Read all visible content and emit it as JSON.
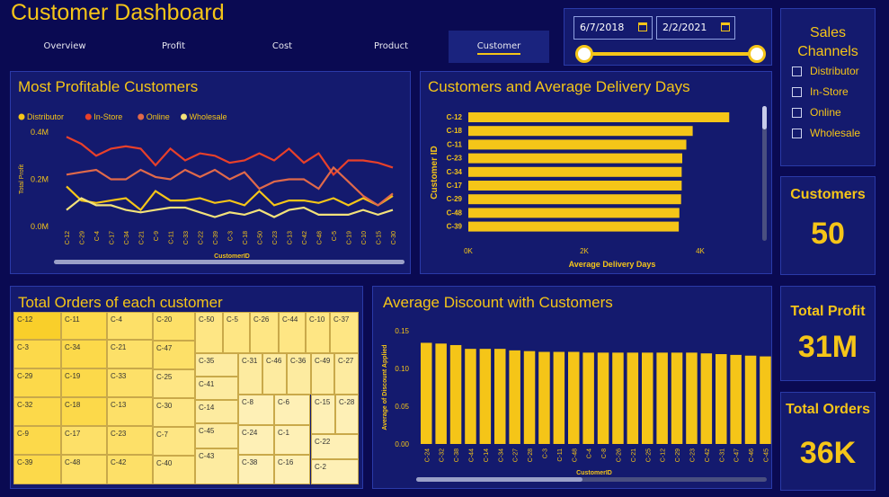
{
  "header": {
    "title": "Customer Dashboard"
  },
  "nav": {
    "tabs": [
      "Overview",
      "Profit",
      "Cost",
      "Product",
      "Customer"
    ],
    "active": "Customer"
  },
  "date_filter": {
    "start": "6/7/2018",
    "end": "2/2/2021"
  },
  "sales_channels": {
    "title_line1": "Sales",
    "title_line2": "Channels",
    "options": [
      "Distributor",
      "In-Store",
      "Online",
      "Wholesale"
    ]
  },
  "kpis": {
    "customers": {
      "label": "Customers",
      "value": "50"
    },
    "total_profit": {
      "label": "Total Profit",
      "value": "31M"
    },
    "total_orders": {
      "label": "Total Orders",
      "value": "36K"
    }
  },
  "colors": {
    "accent": "#f5c518",
    "distributor": "#f5c518",
    "in_store": "#e8402a",
    "online": "#e0694a",
    "wholesale": "#f3e27a"
  },
  "chart_data": [
    {
      "id": "profitable",
      "type": "line",
      "title": "Most Profitable Customers",
      "xlabel": "CustomerID",
      "ylabel": "Total Profit",
      "y_ticks": [
        "0.0M",
        "0.2M",
        "0.4M"
      ],
      "ylim": [
        0,
        0.4
      ],
      "categories": [
        "C-12",
        "C-29",
        "C-4",
        "C-17",
        "C-34",
        "C-21",
        "C-9",
        "C-11",
        "C-33",
        "C-22",
        "C-39",
        "C-3",
        "C-18",
        "C-50",
        "C-23",
        "C-13",
        "C-42",
        "C-48",
        "C-5",
        "C-19",
        "C-10",
        "C-15",
        "C-30"
      ],
      "series": [
        {
          "name": "Distributor",
          "color": "#f5c518",
          "values": [
            0.17,
            0.11,
            0.1,
            0.11,
            0.12,
            0.07,
            0.15,
            0.11,
            0.11,
            0.12,
            0.1,
            0.11,
            0.09,
            0.15,
            0.09,
            0.11,
            0.11,
            0.1,
            0.12,
            0.09,
            0.12,
            0.09,
            0.13
          ]
        },
        {
          "name": "In-Store",
          "color": "#e8402a",
          "values": [
            0.38,
            0.35,
            0.3,
            0.33,
            0.34,
            0.33,
            0.26,
            0.33,
            0.28,
            0.31,
            0.3,
            0.27,
            0.28,
            0.31,
            0.28,
            0.33,
            0.27,
            0.31,
            0.22,
            0.28,
            0.28,
            0.27,
            0.25
          ]
        },
        {
          "name": "Online",
          "color": "#e0694a",
          "values": [
            0.22,
            0.23,
            0.24,
            0.2,
            0.2,
            0.24,
            0.21,
            0.2,
            0.24,
            0.21,
            0.24,
            0.2,
            0.23,
            0.16,
            0.19,
            0.2,
            0.2,
            0.16,
            0.25,
            0.19,
            0.13,
            0.09,
            0.14
          ]
        },
        {
          "name": "Wholesale",
          "color": "#f3e27a",
          "values": [
            0.07,
            0.12,
            0.09,
            0.09,
            0.07,
            0.06,
            0.07,
            0.08,
            0.08,
            0.06,
            0.04,
            0.06,
            0.05,
            0.07,
            0.04,
            0.07,
            0.08,
            0.05,
            0.05,
            0.05,
            0.07,
            0.05,
            0.07
          ]
        }
      ]
    },
    {
      "id": "delivery",
      "type": "bar",
      "orientation": "horizontal",
      "title": "Customers and Average Delivery Days",
      "xlabel": "Average Delivery Days",
      "ylabel": "Customer ID",
      "x_ticks": [
        "0K",
        "2K",
        "4K"
      ],
      "xlim": [
        0,
        5000
      ],
      "categories": [
        "C-12",
        "C-18",
        "C-11",
        "C-23",
        "C-34",
        "C-17",
        "C-29",
        "C-48",
        "C-39"
      ],
      "values": [
        4500,
        3870,
        3760,
        3690,
        3680,
        3680,
        3670,
        3640,
        3630
      ]
    },
    {
      "id": "treemap",
      "type": "treemap",
      "title": "Total Orders of each customer",
      "categories": [
        "C-12",
        "C-3",
        "C-29",
        "C-32",
        "C-9",
        "C-39",
        "C-11",
        "C-34",
        "C-19",
        "C-18",
        "C-17",
        "C-48",
        "C-4",
        "C-21",
        "C-33",
        "C-13",
        "C-23",
        "C-42",
        "C-20",
        "C-47",
        "C-25",
        "C-30",
        "C-7",
        "C-40",
        "C-50",
        "C-5",
        "C-26",
        "C-44",
        "C-10",
        "C-37",
        "C-35",
        "C-41",
        "C-14",
        "C-45",
        "C-43",
        "C-31",
        "C-46",
        "C-36",
        "C-49",
        "C-27",
        "C-8",
        "C-6",
        "C-15",
        "C-28",
        "C-24",
        "C-1",
        "C-38",
        "C-16",
        "C-22",
        "C-2"
      ]
    },
    {
      "id": "discount",
      "type": "bar",
      "title": "Average Discount with Customers",
      "xlabel": "CustomerID",
      "ylabel": "Average of Discount Applied",
      "y_ticks": [
        "0.00",
        "0.05",
        "0.10",
        "0.15"
      ],
      "ylim": [
        0,
        0.15
      ],
      "categories": [
        "C-24",
        "C-32",
        "C-38",
        "C-44",
        "C-14",
        "C-34",
        "C-27",
        "C-28",
        "C-3",
        "C-11",
        "C-48",
        "C-4",
        "C-8",
        "C-26",
        "C-21",
        "C-25",
        "C-12",
        "C-29",
        "C-23",
        "C-42",
        "C-31",
        "C-47",
        "C-46",
        "C-45"
      ],
      "values": [
        0.134,
        0.133,
        0.131,
        0.126,
        0.126,
        0.126,
        0.124,
        0.123,
        0.122,
        0.122,
        0.122,
        0.121,
        0.121,
        0.121,
        0.121,
        0.121,
        0.121,
        0.121,
        0.121,
        0.12,
        0.119,
        0.118,
        0.117,
        0.116
      ]
    }
  ]
}
